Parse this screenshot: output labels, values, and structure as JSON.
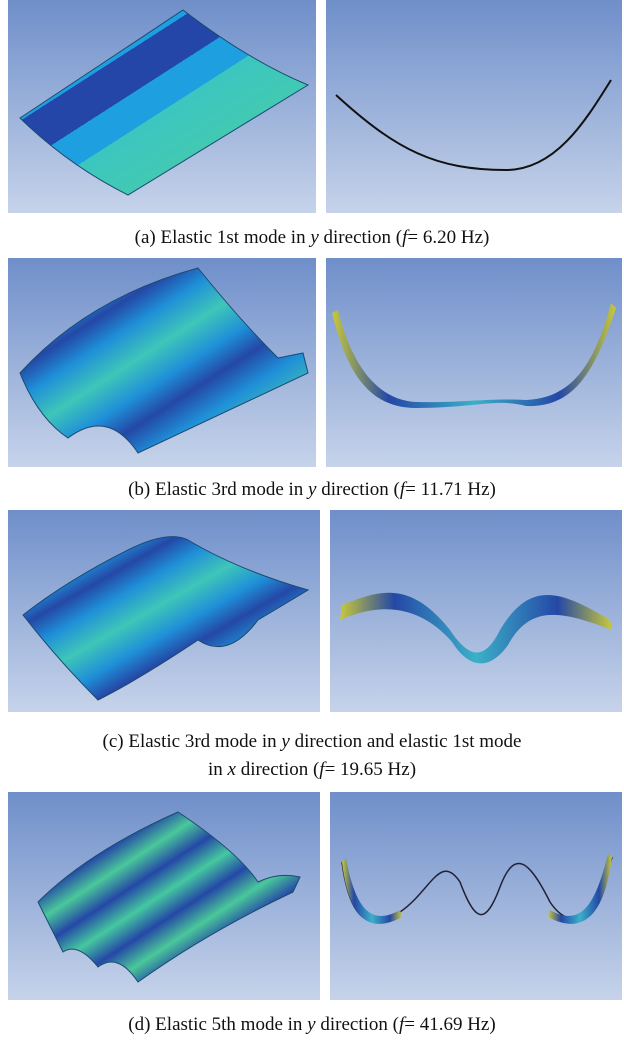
{
  "figures": [
    {
      "caption": {
        "lines": [
          [
            "(a) Elastic 1st mode in ",
            "y",
            " direction (",
            "f",
            "= 6.20 Hz)"
          ]
        ]
      }
    },
    {
      "caption": {
        "lines": [
          [
            "(b) Elastic 3rd mode in ",
            "y",
            " direction (",
            "f",
            "= 11.71 Hz)"
          ]
        ]
      }
    },
    {
      "caption": {
        "lines": [
          [
            "(c) Elastic 3rd mode in ",
            "y",
            " direction and elastic 1st mode"
          ],
          [
            "in ",
            "x",
            " direction (",
            "f",
            "= 19.65 Hz)"
          ]
        ]
      }
    },
    {
      "caption": {
        "lines": [
          [
            "(d) Elastic 5th mode in ",
            "y",
            " direction (",
            "f",
            "= 41.69 Hz)"
          ]
        ]
      }
    }
  ]
}
